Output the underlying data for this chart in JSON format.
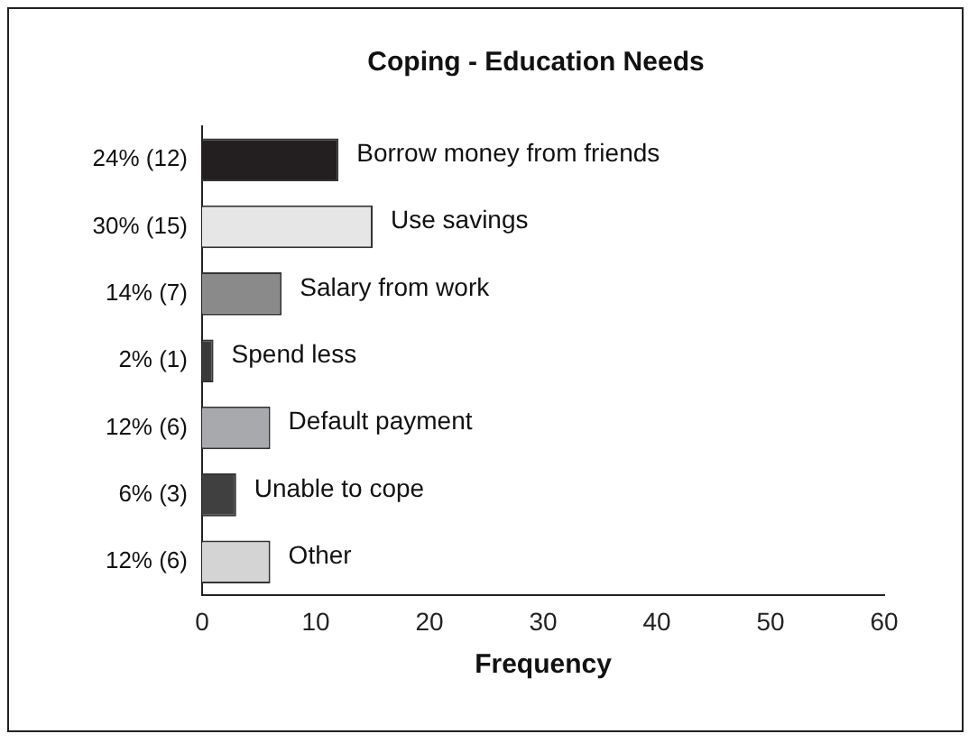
{
  "chart_data": {
    "type": "bar",
    "orientation": "horizontal",
    "title": "Coping - Education Needs",
    "xlabel": "Frequency",
    "categories": [
      "Borrow money from friends",
      "Use savings",
      "Salary from work",
      "Spend less",
      "Default payment",
      "Unable to cope",
      "Other"
    ],
    "values": [
      12,
      15,
      7,
      1,
      6,
      3,
      6
    ],
    "colors": [
      "#231f20",
      "#e6e6e6",
      "#8a8a8a",
      "#3a3a3a",
      "#a7a9ac",
      "#404040",
      "#d4d4d4"
    ],
    "value_labels": [
      "24% (12)",
      "30% (15)",
      "14% (7)",
      "2% (1)",
      "12% (6)",
      "6% (3)",
      "12% (6)"
    ],
    "xlim": [
      0,
      60
    ],
    "xticks": [
      0,
      10,
      20,
      30,
      40,
      50,
      60
    ],
    "grid": false,
    "legend": false
  }
}
